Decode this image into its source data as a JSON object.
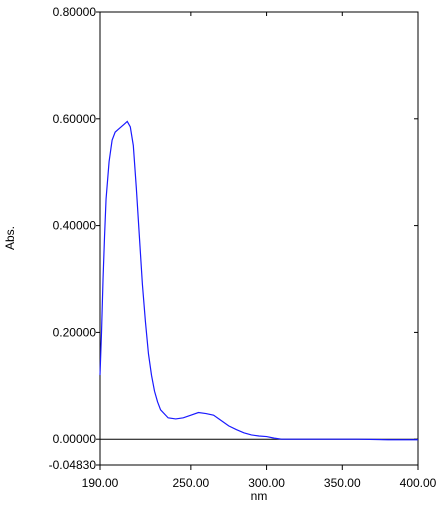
{
  "chart_data": {
    "type": "line",
    "y_label": "Abs.",
    "x_label": "nm",
    "x": [
      190,
      191,
      192,
      193,
      194,
      196,
      198,
      200,
      202,
      204,
      206,
      208,
      210,
      212,
      214,
      216,
      218,
      220,
      222,
      224,
      226,
      228,
      230,
      235,
      240,
      245,
      250,
      255,
      260,
      265,
      270,
      275,
      280,
      285,
      290,
      295,
      300,
      305,
      310,
      320,
      340,
      360,
      380,
      400
    ],
    "series": [
      {
        "color": "#1a1aff",
        "values": [
          0.12,
          0.2,
          0.3,
          0.38,
          0.45,
          0.52,
          0.56,
          0.575,
          0.58,
          0.585,
          0.59,
          0.595,
          0.585,
          0.55,
          0.47,
          0.38,
          0.29,
          0.22,
          0.16,
          0.12,
          0.09,
          0.07,
          0.055,
          0.04,
          0.038,
          0.04,
          0.045,
          0.05,
          0.048,
          0.045,
          0.035,
          0.025,
          0.018,
          0.012,
          0.008,
          0.006,
          0.005,
          0.002,
          0.0,
          0.0,
          0.0,
          0.0,
          -0.001,
          -0.001
        ]
      }
    ],
    "xlim": [
      190,
      400
    ],
    "ylim": [
      -0.0483,
      0.8
    ],
    "xticks": [
      {
        "value": 190,
        "label": "190.00"
      },
      {
        "value": 250,
        "label": "250.00"
      },
      {
        "value": 300,
        "label": "300.00"
      },
      {
        "value": 350,
        "label": "350.00"
      },
      {
        "value": 400,
        "label": "400.00"
      }
    ],
    "yticks": [
      {
        "value": -0.0483,
        "label": "-0.04830"
      },
      {
        "value": 0,
        "label": "0.00000"
      },
      {
        "value": 0.2,
        "label": "0.20000"
      },
      {
        "value": 0.4,
        "label": "0.40000"
      },
      {
        "value": 0.6,
        "label": "0.60000"
      },
      {
        "value": 0.8,
        "label": "0.80000"
      }
    ],
    "zero_line": true
  }
}
